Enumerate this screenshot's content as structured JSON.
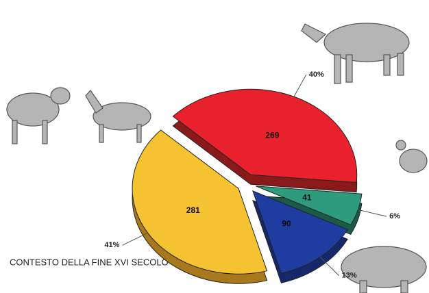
{
  "chart_data": {
    "type": "pie",
    "title": "CONTESTO DELLA FINE XVI SECOLO",
    "values": [
      269,
      41,
      90,
      281
    ],
    "percent_labels": [
      "40%",
      "6%",
      "13%",
      "41%"
    ],
    "colors": [
      "#e8212c",
      "#2e9c7c",
      "#1f3da0",
      "#f5c232"
    ],
    "side_colors": [
      "#8a1a1a",
      "#1b5a48",
      "#15286a",
      "#a8781c"
    ]
  }
}
